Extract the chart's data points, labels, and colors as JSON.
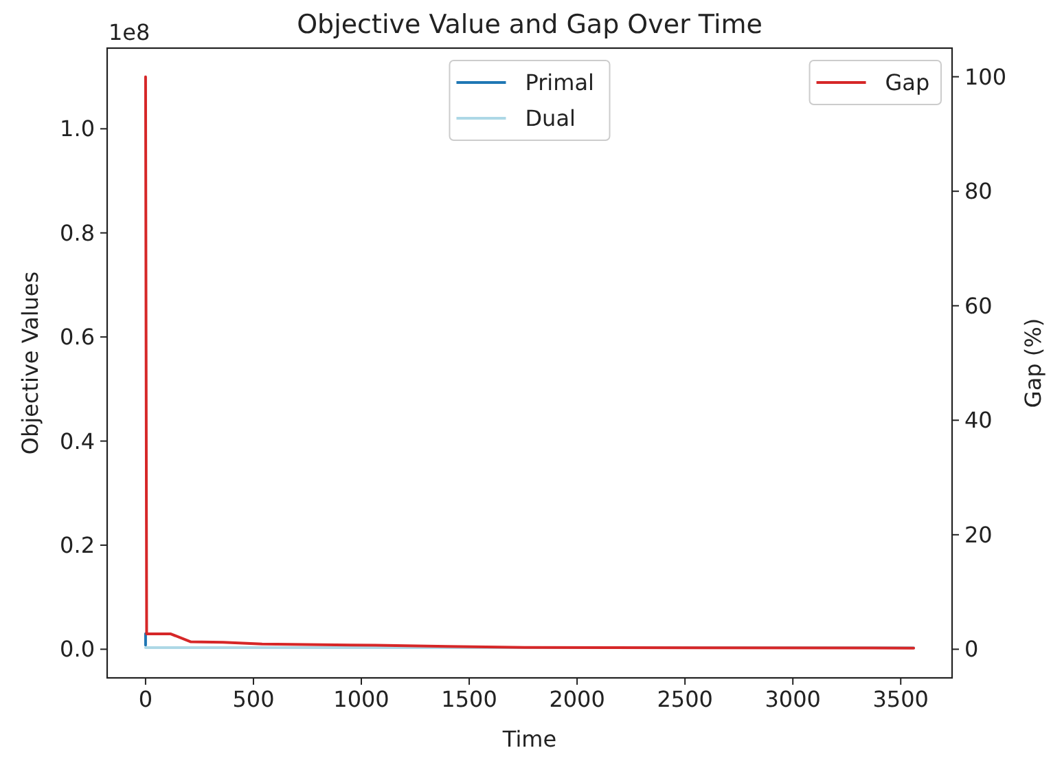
{
  "chart_data": {
    "type": "line",
    "title": "Objective Value and Gap Over Time",
    "xlabel": "Time",
    "ylabel": "Objective Values",
    "y2label": "Gap (%)",
    "annotations": [
      "1e8"
    ],
    "xlim": [
      -178,
      3738
    ],
    "xticks": [
      0,
      500,
      1000,
      1500,
      2000,
      2500,
      3000,
      3500
    ],
    "ylim": [
      -0.055,
      1.155
    ],
    "yticks": [
      {
        "value": 0,
        "label": "0.0"
      },
      0.2,
      0.4,
      0.6,
      0.8,
      {
        "value": 1,
        "label": "1.0"
      }
    ],
    "y2lim": [
      -5,
      105
    ],
    "y2ticks": [
      0,
      20,
      40,
      60,
      80,
      100
    ],
    "legend": "top",
    "series": [
      {
        "name": "Primal",
        "color": "#1f77b4",
        "x": [
          0,
          0
        ],
        "values": [
          0.03,
          0.008
        ]
      },
      {
        "name": "Dual",
        "color": "#add8e6",
        "x": [
          0,
          3560
        ],
        "values": [
          0.003,
          0.003
        ]
      },
      {
        "name": "Gap",
        "color": "#d62728",
        "axis": "y2",
        "x": [
          0,
          5,
          115,
          210,
          360,
          540,
          1065,
          1400,
          1760,
          3560
        ],
        "values": [
          100,
          2.7,
          2.7,
          1.3,
          1.2,
          0.9,
          0.7,
          0.5,
          0.3,
          0.2
        ]
      }
    ]
  }
}
